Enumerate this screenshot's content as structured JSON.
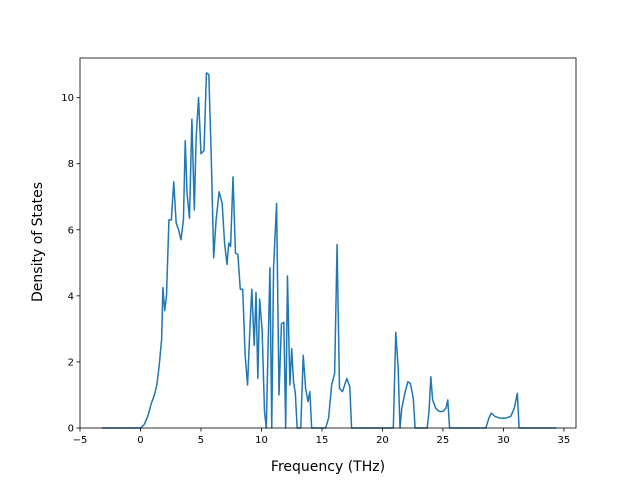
{
  "chart_data": {
    "type": "line",
    "title": "",
    "xlabel": "Frequency (THz)",
    "ylabel": "Density of States",
    "xlim": [
      -5,
      36
    ],
    "ylim": [
      0,
      11.2
    ],
    "xticks": [
      -5,
      0,
      5,
      10,
      15,
      20,
      25,
      30,
      35
    ],
    "yticks": [
      0,
      2,
      4,
      6,
      8,
      10
    ],
    "grid": false,
    "legend": "none",
    "series": [
      {
        "color": "#1f77b4",
        "points": [
          [
            -3.2,
            0
          ],
          [
            -1.0,
            0
          ],
          [
            0.0,
            0
          ],
          [
            0.3,
            0.1
          ],
          [
            0.6,
            0.35
          ],
          [
            0.9,
            0.75
          ],
          [
            1.15,
            1.0
          ],
          [
            1.35,
            1.3
          ],
          [
            1.55,
            1.9
          ],
          [
            1.75,
            2.7
          ],
          [
            1.85,
            4.25
          ],
          [
            2.0,
            3.55
          ],
          [
            2.15,
            4.0
          ],
          [
            2.35,
            6.3
          ],
          [
            2.55,
            6.3
          ],
          [
            2.75,
            7.45
          ],
          [
            2.95,
            6.2
          ],
          [
            3.15,
            6.0
          ],
          [
            3.35,
            5.7
          ],
          [
            3.55,
            6.3
          ],
          [
            3.7,
            8.7
          ],
          [
            3.85,
            7.1
          ],
          [
            4.05,
            6.35
          ],
          [
            4.25,
            9.35
          ],
          [
            4.45,
            6.6
          ],
          [
            4.6,
            8.8
          ],
          [
            4.8,
            10.0
          ],
          [
            5.0,
            8.3
          ],
          [
            5.25,
            8.4
          ],
          [
            5.45,
            10.75
          ],
          [
            5.65,
            10.7
          ],
          [
            5.85,
            8.2
          ],
          [
            6.05,
            5.15
          ],
          [
            6.25,
            6.3
          ],
          [
            6.5,
            7.15
          ],
          [
            6.75,
            6.8
          ],
          [
            6.95,
            5.6
          ],
          [
            7.15,
            4.95
          ],
          [
            7.3,
            5.6
          ],
          [
            7.45,
            5.5
          ],
          [
            7.65,
            7.6
          ],
          [
            7.85,
            5.3
          ],
          [
            8.05,
            5.25
          ],
          [
            8.25,
            4.2
          ],
          [
            8.45,
            4.2
          ],
          [
            8.65,
            2.2
          ],
          [
            8.85,
            1.3
          ],
          [
            9.05,
            3.05
          ],
          [
            9.2,
            4.2
          ],
          [
            9.4,
            2.5
          ],
          [
            9.55,
            4.1
          ],
          [
            9.7,
            1.5
          ],
          [
            9.85,
            3.9
          ],
          [
            10.05,
            3.0
          ],
          [
            10.25,
            0.5
          ],
          [
            10.4,
            0
          ],
          [
            10.55,
            2.5
          ],
          [
            10.7,
            4.85
          ],
          [
            10.85,
            0
          ],
          [
            11.0,
            4.85
          ],
          [
            11.25,
            6.8
          ],
          [
            11.45,
            1.0
          ],
          [
            11.65,
            3.15
          ],
          [
            11.85,
            3.2
          ],
          [
            12.0,
            0
          ],
          [
            12.15,
            4.6
          ],
          [
            12.35,
            1.3
          ],
          [
            12.5,
            2.4
          ],
          [
            12.65,
            1.4
          ],
          [
            12.8,
            1.05
          ],
          [
            12.95,
            0
          ],
          [
            13.25,
            0
          ],
          [
            13.45,
            2.2
          ],
          [
            13.65,
            1.2
          ],
          [
            13.85,
            0.8
          ],
          [
            14.0,
            1.1
          ],
          [
            14.15,
            0
          ],
          [
            15.3,
            0
          ],
          [
            15.55,
            0.3
          ],
          [
            15.8,
            1.3
          ],
          [
            16.05,
            1.65
          ],
          [
            16.25,
            5.55
          ],
          [
            16.45,
            1.2
          ],
          [
            16.7,
            1.1
          ],
          [
            17.05,
            1.5
          ],
          [
            17.3,
            1.25
          ],
          [
            17.45,
            0
          ],
          [
            20.9,
            0
          ],
          [
            21.1,
            2.9
          ],
          [
            21.3,
            1.8
          ],
          [
            21.45,
            0
          ],
          [
            21.6,
            0.6
          ],
          [
            21.85,
            1.05
          ],
          [
            22.1,
            1.4
          ],
          [
            22.3,
            1.35
          ],
          [
            22.55,
            0.9
          ],
          [
            22.7,
            0
          ],
          [
            23.7,
            0
          ],
          [
            23.85,
            0.5
          ],
          [
            24.0,
            1.55
          ],
          [
            24.15,
            0.85
          ],
          [
            24.4,
            0.6
          ],
          [
            24.7,
            0.5
          ],
          [
            25.0,
            0.5
          ],
          [
            25.25,
            0.6
          ],
          [
            25.4,
            0.85
          ],
          [
            25.55,
            0
          ],
          [
            28.55,
            0
          ],
          [
            28.8,
            0.3
          ],
          [
            29.0,
            0.45
          ],
          [
            29.3,
            0.35
          ],
          [
            29.7,
            0.3
          ],
          [
            30.2,
            0.3
          ],
          [
            30.6,
            0.35
          ],
          [
            30.9,
            0.6
          ],
          [
            31.15,
            1.05
          ],
          [
            31.3,
            0
          ],
          [
            34.4,
            0
          ]
        ]
      }
    ]
  }
}
